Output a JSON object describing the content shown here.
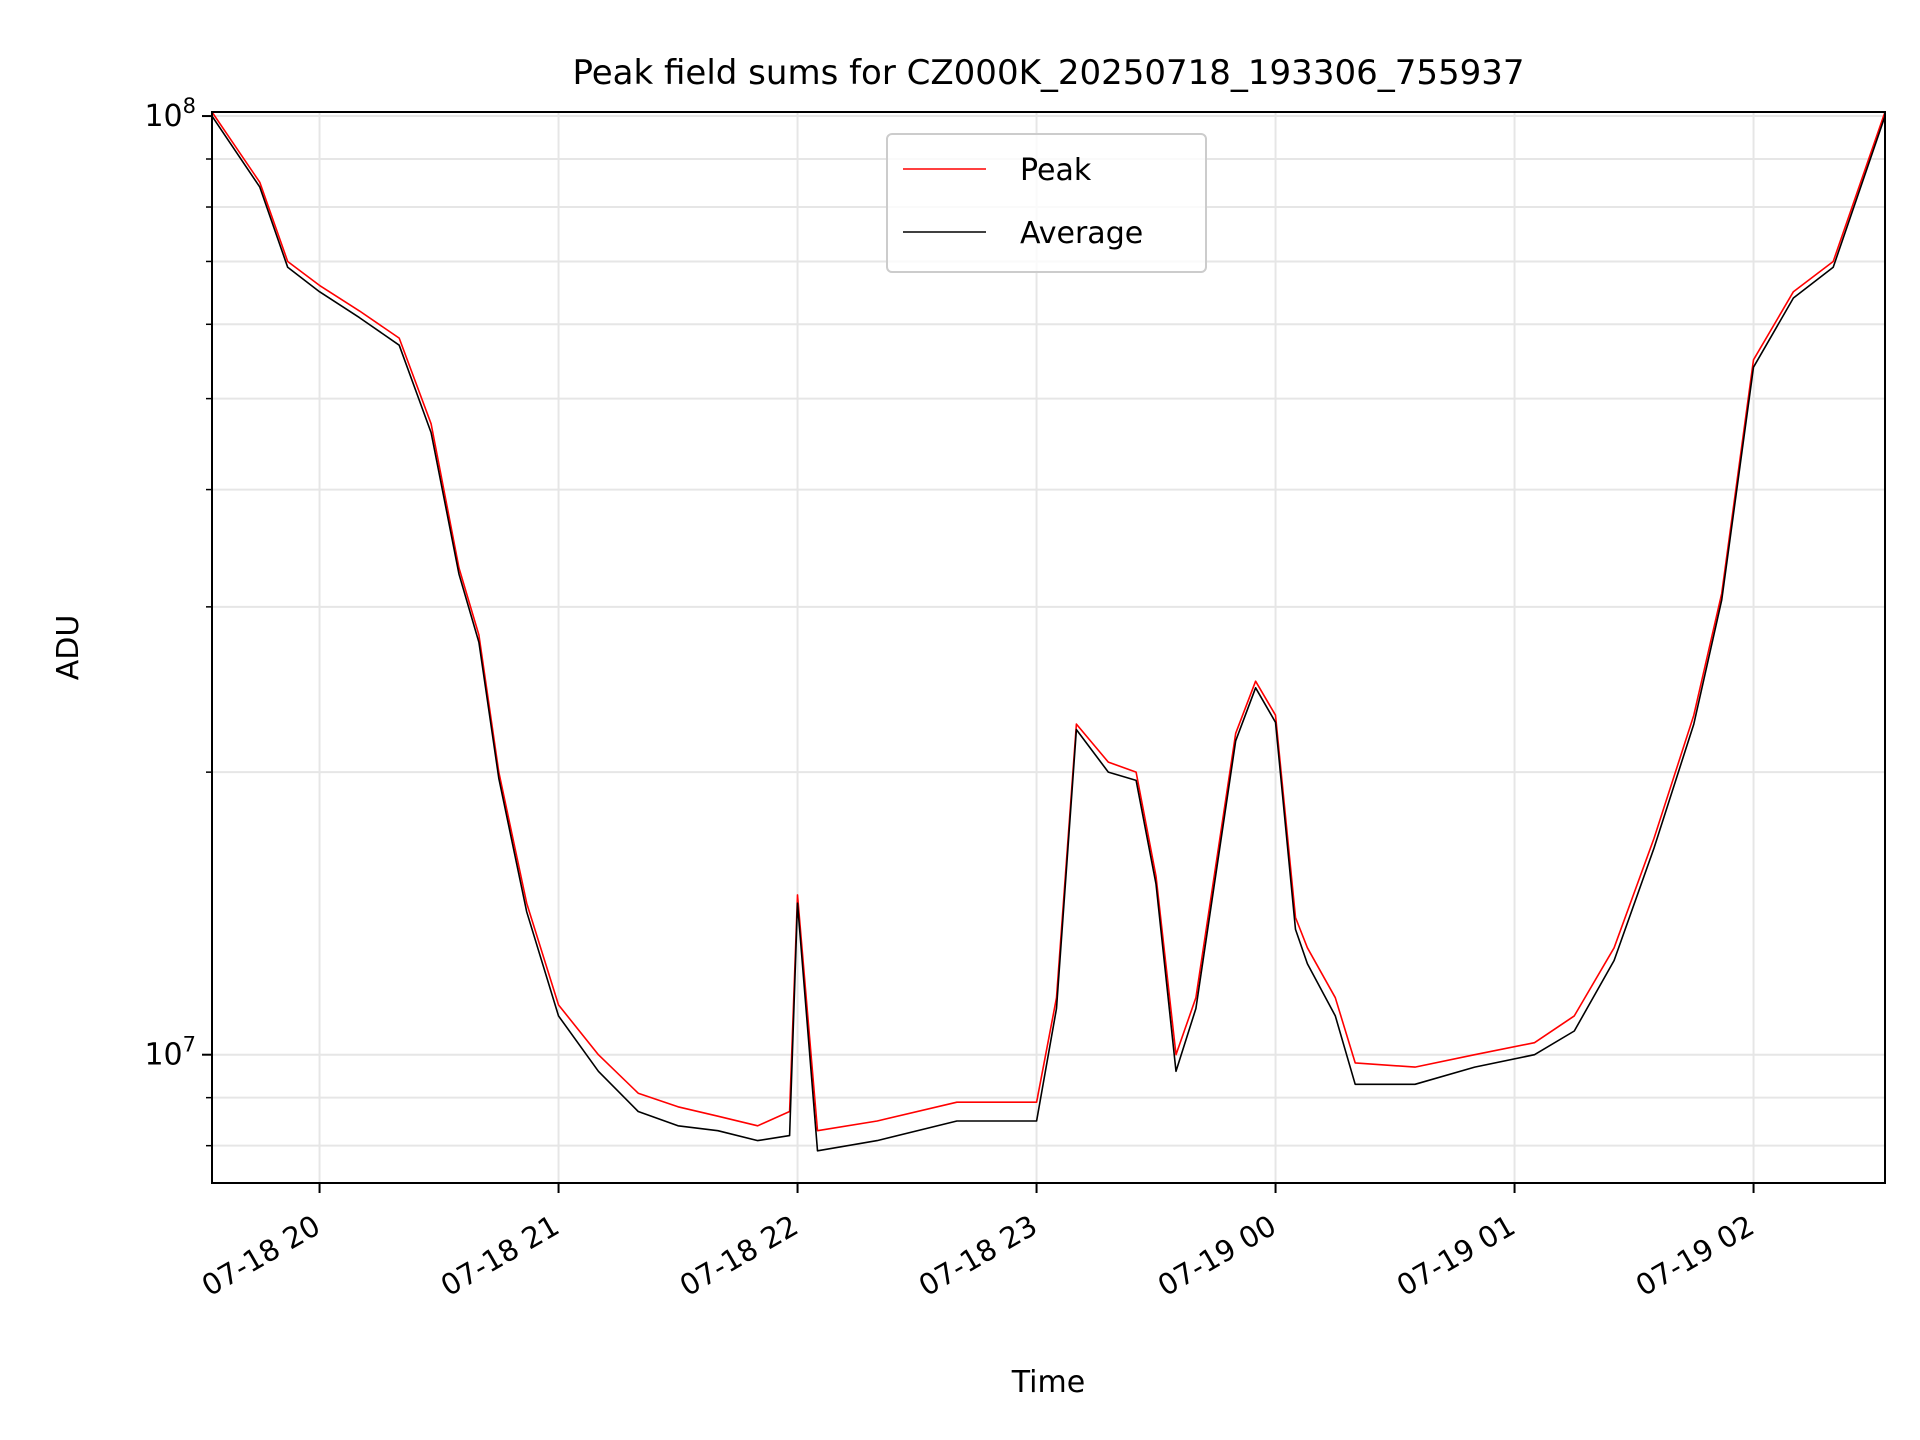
{
  "chart_data": {
    "type": "line",
    "title": "Peak field sums for CZ000K_20250718_193306_755937",
    "xlabel": "Time",
    "ylabel": "ADU",
    "x_is_datetime": true,
    "xlim": [
      "2025-07-18T19:33",
      "2025-07-19T02:33"
    ],
    "ylim": [
      7300000,
      101000000
    ],
    "yscale": "log",
    "grid": true,
    "legend_position": "top-center",
    "x_ticks": [
      {
        "t": "2025-07-18T20:00",
        "label": "07-18 20"
      },
      {
        "t": "2025-07-18T21:00",
        "label": "07-18 21"
      },
      {
        "t": "2025-07-18T22:00",
        "label": "07-18 22"
      },
      {
        "t": "2025-07-18T23:00",
        "label": "07-18 23"
      },
      {
        "t": "2025-07-19T00:00",
        "label": "07-19 00"
      },
      {
        "t": "2025-07-19T01:00",
        "label": "07-19 01"
      },
      {
        "t": "2025-07-19T02:00",
        "label": "07-19 02"
      }
    ],
    "y_major_ticks": [
      {
        "v": 10000000,
        "base": "10",
        "exp": "7"
      },
      {
        "v": 100000000,
        "base": "10",
        "exp": "8"
      }
    ],
    "series": [
      {
        "name": "Peak",
        "color": "#ff0000",
        "x": [
          "2025-07-18T19:33",
          "2025-07-18T19:45",
          "2025-07-18T19:52",
          "2025-07-18T20:00",
          "2025-07-18T20:10",
          "2025-07-18T20:20",
          "2025-07-18T20:28",
          "2025-07-18T20:35",
          "2025-07-18T20:40",
          "2025-07-18T20:45",
          "2025-07-18T20:52",
          "2025-07-18T21:00",
          "2025-07-18T21:10",
          "2025-07-18T21:20",
          "2025-07-18T21:30",
          "2025-07-18T21:40",
          "2025-07-18T21:50",
          "2025-07-18T21:58",
          "2025-07-18T22:00",
          "2025-07-18T22:05",
          "2025-07-18T22:20",
          "2025-07-18T22:40",
          "2025-07-18T23:00",
          "2025-07-18T23:05",
          "2025-07-18T23:10",
          "2025-07-18T23:18",
          "2025-07-18T23:25",
          "2025-07-18T23:30",
          "2025-07-18T23:35",
          "2025-07-18T23:40",
          "2025-07-18T23:50",
          "2025-07-18T23:55",
          "2025-07-19T00:00",
          "2025-07-19T00:05",
          "2025-07-19T00:08",
          "2025-07-19T00:15",
          "2025-07-19T00:20",
          "2025-07-19T00:35",
          "2025-07-19T00:50",
          "2025-07-19T01:05",
          "2025-07-19T01:15",
          "2025-07-19T01:25",
          "2025-07-19T01:35",
          "2025-07-19T01:45",
          "2025-07-19T01:52",
          "2025-07-19T02:00",
          "2025-07-19T02:10",
          "2025-07-19T02:20",
          "2025-07-19T02:33"
        ],
        "y": [
          101000000,
          85000000,
          70000000,
          66000000,
          62000000,
          58000000,
          47000000,
          33000000,
          28000000,
          20000000,
          14500000,
          11300000,
          10000000,
          9100000,
          8800000,
          8600000,
          8400000,
          8700000,
          14800000,
          8300000,
          8500000,
          8900000,
          8900000,
          11500000,
          22500000,
          20500000,
          20000000,
          15500000,
          10000000,
          11500000,
          22000000,
          25000000,
          23000000,
          14000000,
          13000000,
          11500000,
          9800000,
          9700000,
          10000000,
          10300000,
          11000000,
          13000000,
          17000000,
          23000000,
          31000000,
          55000000,
          65000000,
          70000000,
          101000000
        ]
      },
      {
        "name": "Average",
        "color": "#000000",
        "x": [
          "2025-07-18T19:33",
          "2025-07-18T19:45",
          "2025-07-18T19:52",
          "2025-07-18T20:00",
          "2025-07-18T20:10",
          "2025-07-18T20:20",
          "2025-07-18T20:28",
          "2025-07-18T20:35",
          "2025-07-18T20:40",
          "2025-07-18T20:45",
          "2025-07-18T20:52",
          "2025-07-18T21:00",
          "2025-07-18T21:10",
          "2025-07-18T21:20",
          "2025-07-18T21:30",
          "2025-07-18T21:40",
          "2025-07-18T21:50",
          "2025-07-18T21:58",
          "2025-07-18T22:00",
          "2025-07-18T22:05",
          "2025-07-18T22:20",
          "2025-07-18T22:40",
          "2025-07-18T23:00",
          "2025-07-18T23:05",
          "2025-07-18T23:10",
          "2025-07-18T23:18",
          "2025-07-18T23:25",
          "2025-07-18T23:30",
          "2025-07-18T23:35",
          "2025-07-18T23:40",
          "2025-07-18T23:50",
          "2025-07-18T23:55",
          "2025-07-19T00:00",
          "2025-07-19T00:05",
          "2025-07-19T00:08",
          "2025-07-19T00:15",
          "2025-07-19T00:20",
          "2025-07-19T00:35",
          "2025-07-19T00:50",
          "2025-07-19T01:05",
          "2025-07-19T01:15",
          "2025-07-19T01:25",
          "2025-07-19T01:35",
          "2025-07-19T01:45",
          "2025-07-19T01:52",
          "2025-07-19T02:00",
          "2025-07-19T02:10",
          "2025-07-19T02:20",
          "2025-07-19T02:33"
        ],
        "y": [
          100000000,
          84000000,
          69000000,
          65000000,
          61000000,
          57000000,
          46000000,
          32500000,
          27500000,
          19700000,
          14200000,
          11000000,
          9600000,
          8700000,
          8400000,
          8300000,
          8100000,
          8200000,
          14500000,
          7900000,
          8100000,
          8500000,
          8500000,
          11200000,
          22200000,
          20000000,
          19600000,
          15200000,
          9600000,
          11200000,
          21600000,
          24600000,
          22600000,
          13600000,
          12500000,
          11000000,
          9300000,
          9300000,
          9700000,
          10000000,
          10600000,
          12600000,
          16600000,
          22500000,
          30500000,
          54000000,
          64000000,
          69000000,
          100000000
        ]
      }
    ]
  }
}
